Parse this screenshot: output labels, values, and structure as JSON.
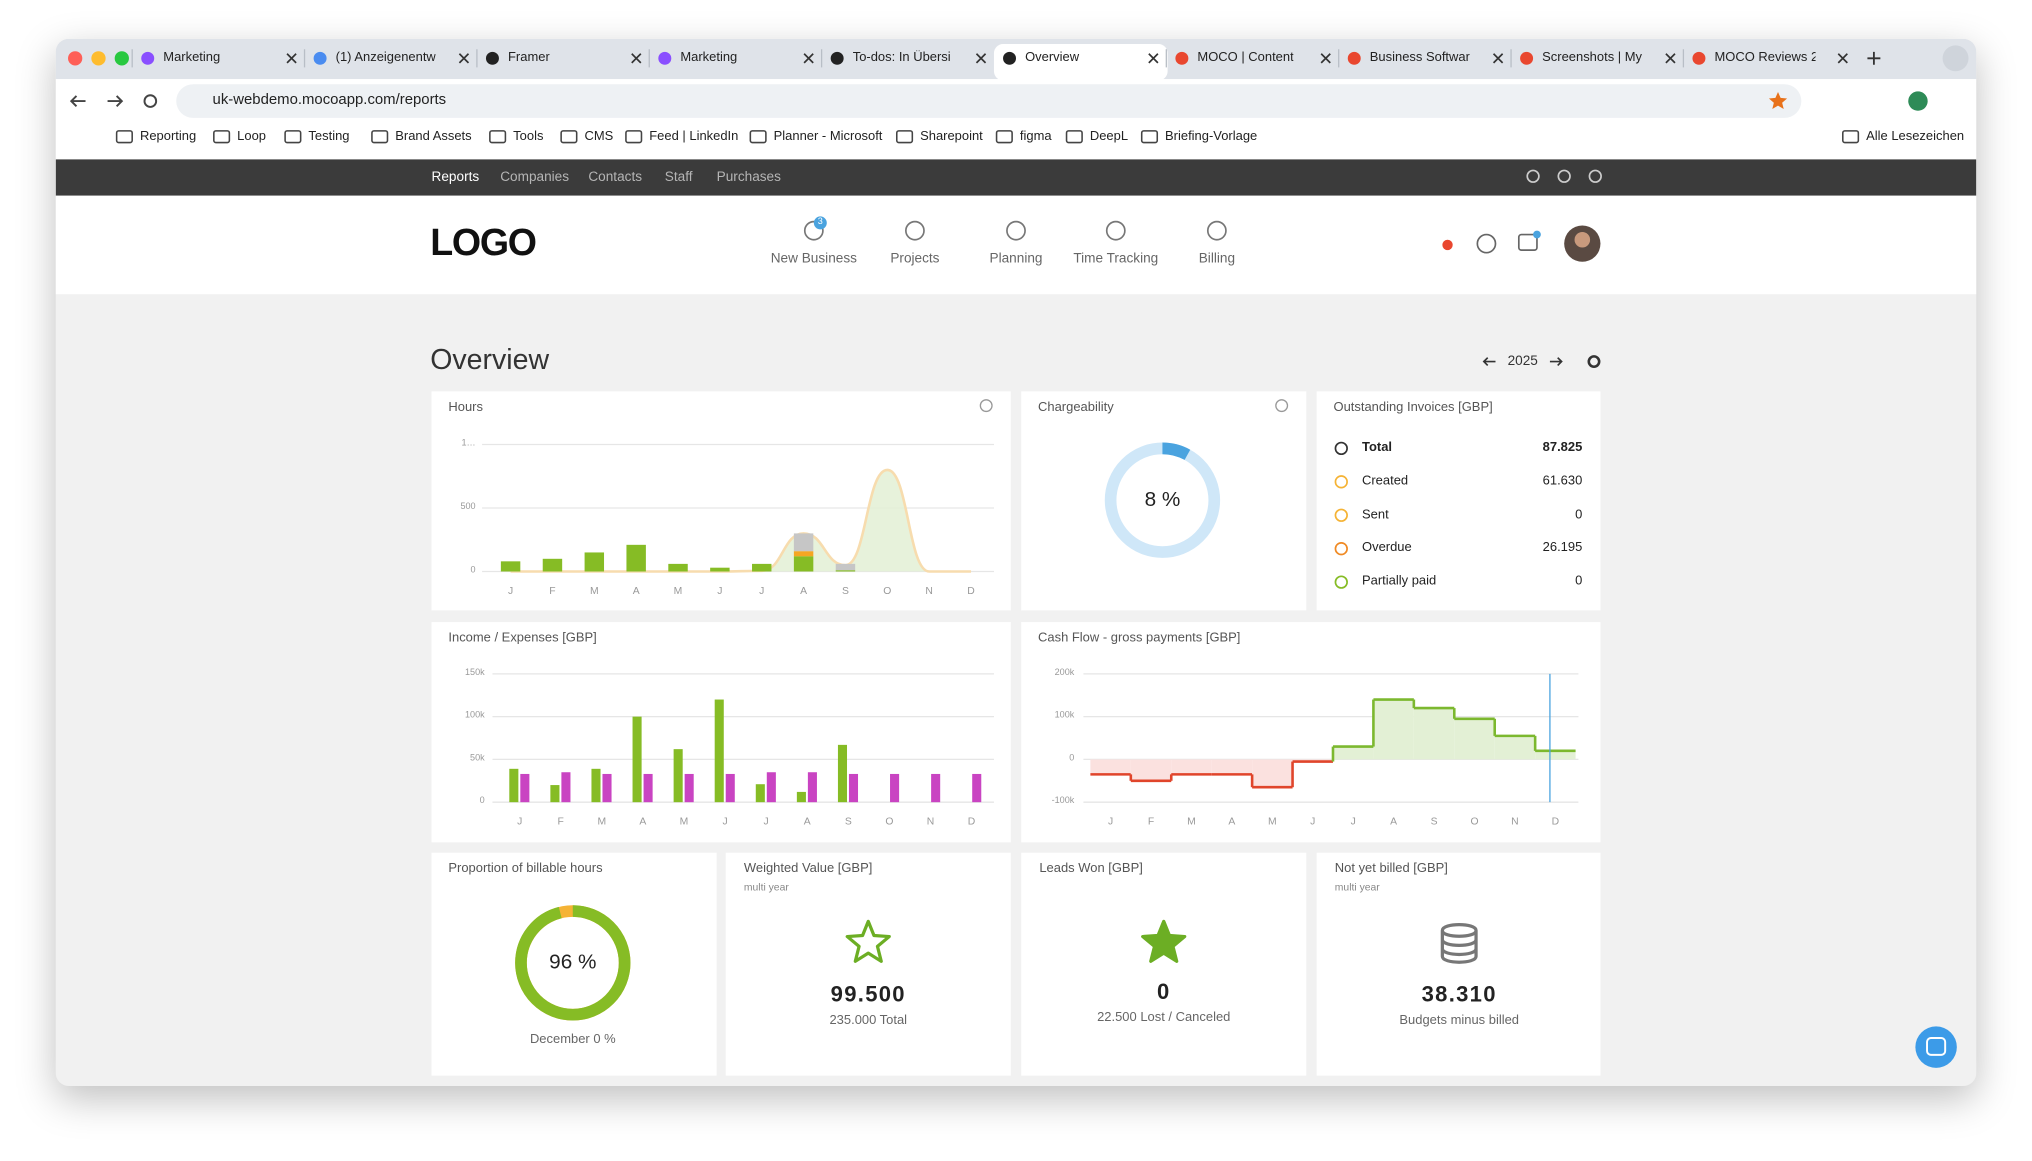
{
  "browser": {
    "tabs": [
      "Marketing",
      "(1) Anzeigenentw",
      "Framer",
      "Marketing",
      "To-dos: In Übersi",
      "Overview",
      "MOCO | Content",
      "Business Softwar",
      "Screenshots | My",
      "MOCO Reviews 2"
    ],
    "active_tab": 5,
    "url": "uk-webdemo.mocoapp.com/reports",
    "bookmarks": [
      "Reporting",
      "Loop",
      "Testing",
      "Brand Assets",
      "Tools",
      "CMS",
      "Feed | LinkedIn",
      "Planner - Microsoft",
      "Sharepoint",
      "figma",
      "DeepL",
      "Briefing-Vorlage"
    ],
    "all_bookmarks": "Alle Lesezeichen"
  },
  "app": {
    "top_nav": [
      "Reports",
      "Companies",
      "Contacts",
      "Staff",
      "Purchases"
    ],
    "active_top": 0,
    "logo": "LOGO",
    "main_nav": [
      "New Business",
      "Projects",
      "Planning",
      "Time Tracking",
      "Billing"
    ],
    "new_business_badge": 3
  },
  "page": {
    "title": "Overview",
    "year": "2025"
  },
  "hours": {
    "type": "bar",
    "title": "Hours",
    "categories": [
      "J",
      "F",
      "M",
      "A",
      "M",
      "J",
      "J",
      "A",
      "S",
      "O",
      "N",
      "D"
    ],
    "ylim": [
      0,
      1000
    ],
    "yticks": [
      0,
      500,
      {
        "value": 1000,
        "label": "1…"
      }
    ],
    "series": [
      {
        "color": "#86bc25",
        "values": [
          80,
          100,
          150,
          210,
          60,
          30,
          60,
          120,
          10,
          0,
          0,
          0
        ]
      },
      {
        "color": "#f5a623",
        "values": [
          0,
          0,
          0,
          0,
          0,
          0,
          0,
          40,
          0,
          0,
          0,
          0
        ]
      },
      {
        "color": "#c6c6c6",
        "values": [
          0,
          0,
          0,
          0,
          0,
          0,
          0,
          140,
          50,
          0,
          0,
          0
        ]
      }
    ],
    "area": {
      "color": "#f7dcae",
      "fill": "#e3f0d5",
      "values": [
        0,
        0,
        0,
        0,
        0,
        0,
        5,
        300,
        50,
        800,
        0,
        0
      ]
    }
  },
  "chargeability": {
    "type": "donut",
    "title": "Chargeability",
    "value": 8,
    "value_label": "8 %",
    "color": "#4aa3df",
    "track": "#cfe7f8"
  },
  "outstanding": {
    "title": "Outstanding Invoices [GBP]",
    "rows": [
      [
        "Total",
        "87.825"
      ],
      [
        "Created",
        "61.630"
      ],
      [
        "Sent",
        "0"
      ],
      [
        "Overdue",
        "26.195"
      ],
      [
        "Partially paid",
        "0"
      ]
    ]
  },
  "income": {
    "type": "bar",
    "title": "Income / Expenses [GBP]",
    "categories": [
      "J",
      "F",
      "M",
      "A",
      "M",
      "J",
      "J",
      "A",
      "S",
      "O",
      "N",
      "D"
    ],
    "ylim": [
      0,
      150000
    ],
    "yticks": [
      0,
      {
        "value": 50000,
        "label": "50k"
      },
      {
        "value": 100000,
        "label": "100k"
      },
      {
        "value": 150000,
        "label": "150k"
      }
    ],
    "series": [
      {
        "color": "#86bc25",
        "values": [
          39000,
          20000,
          39000,
          100000,
          62000,
          120000,
          21000,
          12000,
          67000,
          0,
          0,
          0
        ]
      },
      {
        "color": "#c944c2",
        "values": [
          33000,
          35000,
          33000,
          33000,
          33000,
          33000,
          35000,
          35000,
          33000,
          33000,
          33000,
          33000
        ]
      }
    ]
  },
  "cashflow": {
    "type": "step",
    "title": "Cash Flow - gross payments [GBP]",
    "categories": [
      "J",
      "F",
      "M",
      "A",
      "M",
      "J",
      "J",
      "A",
      "S",
      "O",
      "N",
      "D"
    ],
    "ylim": [
      -100000,
      200000
    ],
    "yticks": [
      {
        "value": -100000,
        "label": "-100k"
      },
      0,
      {
        "value": 100000,
        "label": "100k"
      },
      {
        "value": 200000,
        "label": "200k"
      }
    ],
    "values": [
      -35000,
      -50000,
      -35000,
      -35000,
      -65000,
      -5000,
      30000,
      140000,
      120000,
      95000,
      55000,
      20000
    ],
    "positive_color": "#7cb82f",
    "negative_color": "#e0452b",
    "positive_fill": "#e3f0d5",
    "negative_fill": "#fbe1df"
  },
  "billable": {
    "type": "donut",
    "title": "Proportion of billable hours",
    "value": 96,
    "value_label": "96 %",
    "color": "#86bc25",
    "track": "#f5b335",
    "caption": "December 0 %"
  },
  "kpis": [
    {
      "title": "Weighted Value [GBP]",
      "subtitle": "multi year",
      "value": "99.500",
      "caption": "235.000 Total",
      "icon": "star-outline"
    },
    {
      "title": "Leads Won [GBP]",
      "value": "0",
      "caption": "22.500 Lost / Canceled",
      "icon": "star"
    },
    {
      "title": "Not yet billed [GBP]",
      "subtitle": "multi year",
      "value": "38.310",
      "caption": "Budgets minus billed",
      "icon": "database"
    }
  ]
}
